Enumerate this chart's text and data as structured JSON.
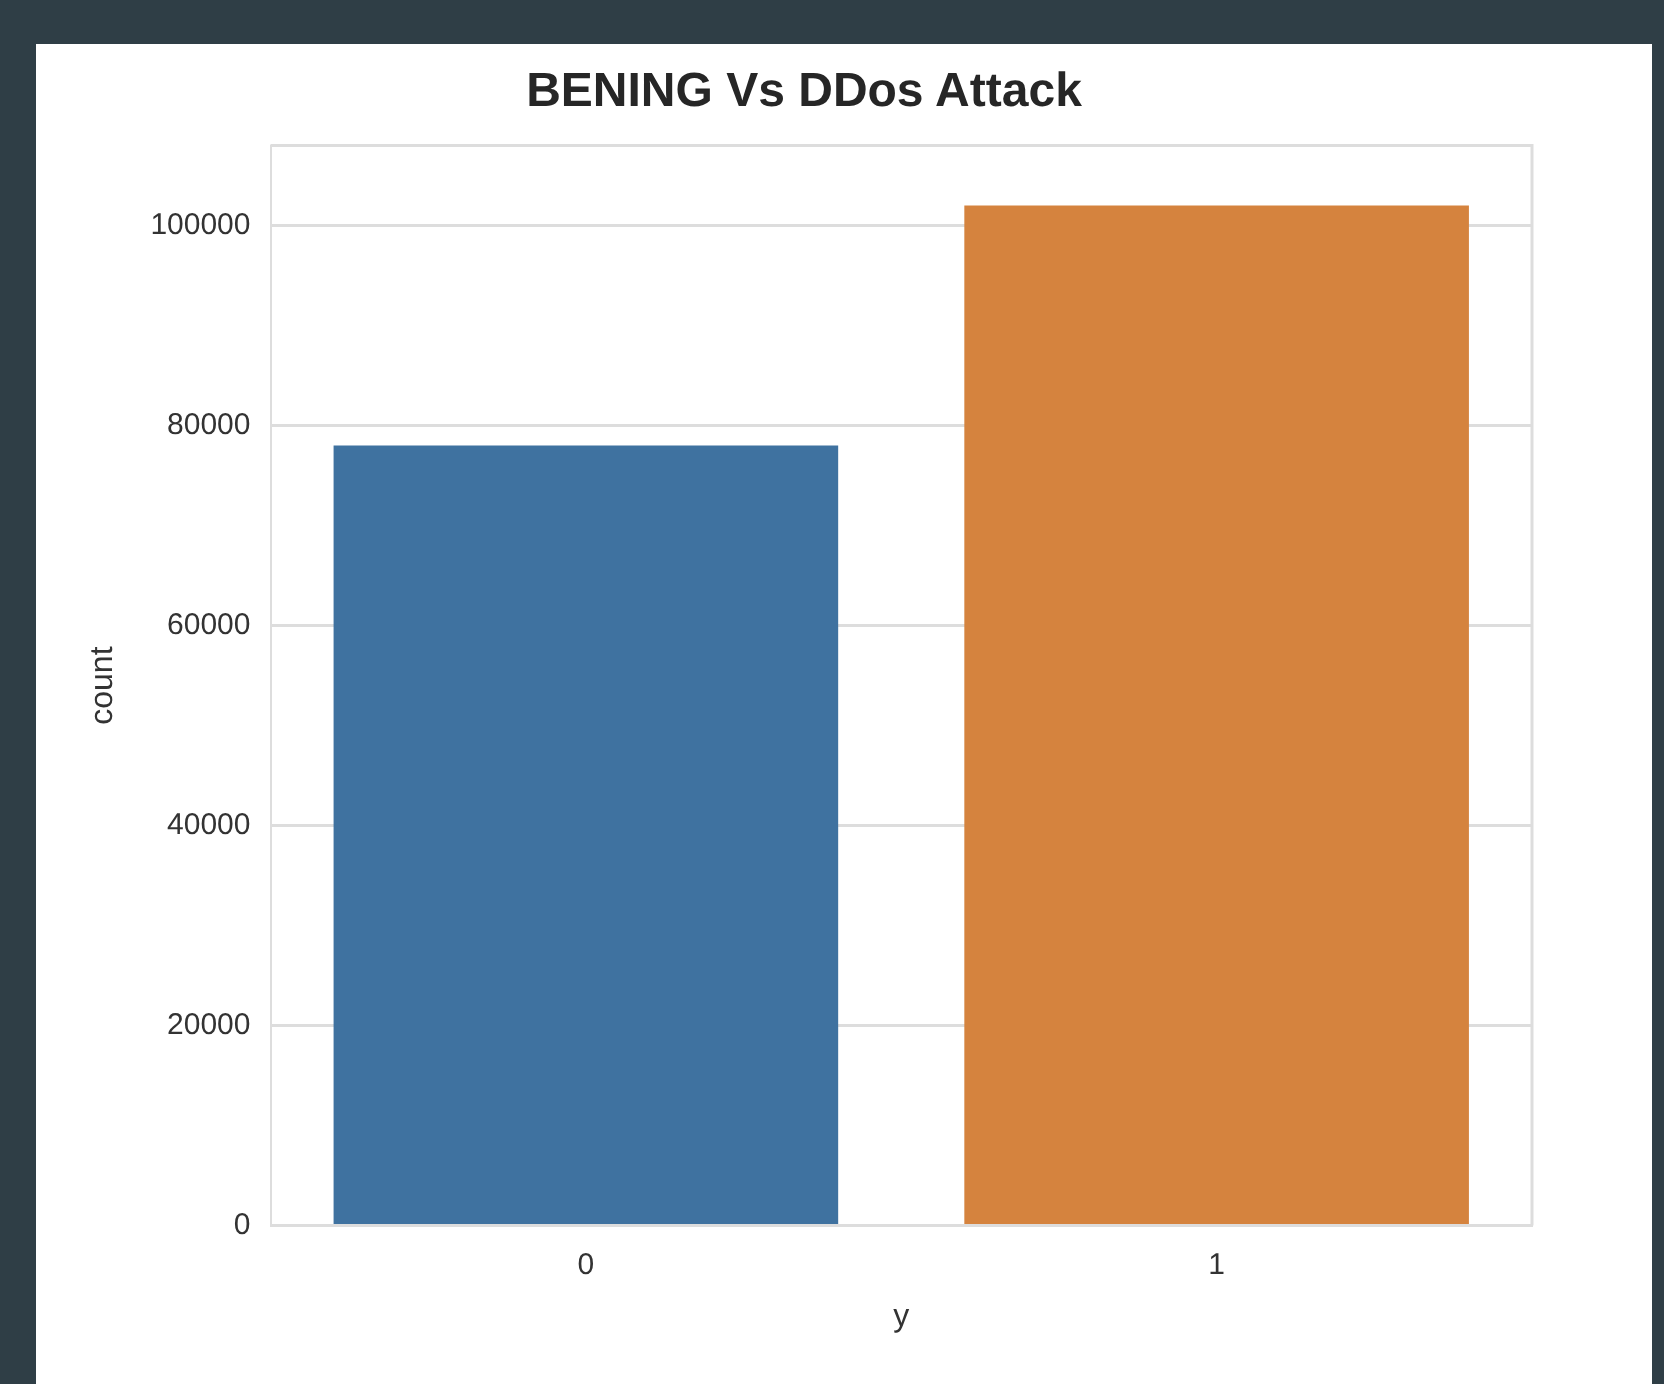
{
  "chart_data": {
    "type": "bar",
    "title": "BENING Vs DDos Attack",
    "xlabel": "y",
    "ylabel": "count",
    "categories": [
      "0",
      "1"
    ],
    "values": [
      78000,
      102000
    ],
    "colors": [
      "#3f72a0",
      "#d5833e"
    ],
    "ylim": [
      0,
      108000
    ],
    "yticks": [
      0,
      20000,
      40000,
      60000,
      80000,
      100000
    ],
    "grid": "y",
    "legend": false
  }
}
